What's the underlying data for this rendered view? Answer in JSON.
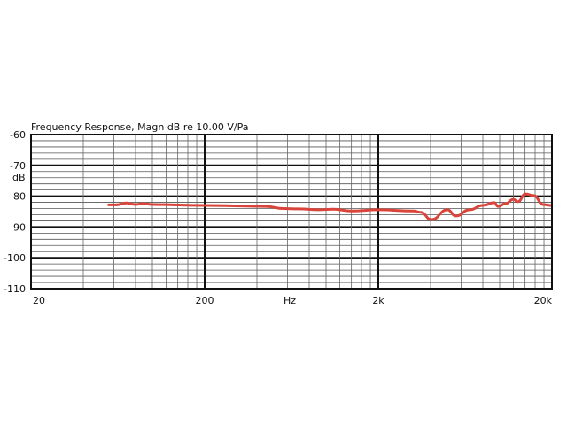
{
  "chart_data": {
    "type": "line",
    "title": "Frequency Response, Magn  dB re 10.00 V/Pa",
    "xlabel": "Hz",
    "ylabel": "dB",
    "x_scale": "log",
    "xlim": [
      20,
      20000
    ],
    "ylim": [
      -110,
      -60
    ],
    "x_ticks": [
      {
        "value": 20,
        "label": "20"
      },
      {
        "value": 200,
        "label": "200"
      },
      {
        "value": 2000,
        "label": "2k"
      },
      {
        "value": 20000,
        "label": "20k"
      }
    ],
    "y_ticks": [
      {
        "value": -60,
        "label": "-60"
      },
      {
        "value": -70,
        "label": "-70"
      },
      {
        "value": -80,
        "label": "-80"
      },
      {
        "value": -90,
        "label": "-90"
      },
      {
        "value": -100,
        "label": "-100"
      },
      {
        "value": -110,
        "label": "-110"
      }
    ],
    "grid": true,
    "series": [
      {
        "color": "#d9453b",
        "x": [
          56,
          62,
          71,
          80,
          89,
          100,
          200,
          450,
          569,
          700,
          909,
          1100,
          1400,
          2000,
          3200,
          3500,
          4050,
          5000,
          5600,
          6700,
          8000,
          9300,
          9800,
          10800,
          12000,
          12700,
          14100,
          15700,
          17800,
          19800
        ],
        "y": [
          -82.8,
          -82.8,
          -82.2,
          -82.7,
          -82.4,
          -82.7,
          -83.0,
          -83.3,
          -84.0,
          -84.1,
          -84.4,
          -84.2,
          -84.8,
          -84.4,
          -84.8,
          -85.2,
          -87.6,
          -84.4,
          -86.4,
          -84.4,
          -83.0,
          -82.1,
          -83.3,
          -82.4,
          -81.0,
          -81.8,
          -79.3,
          -79.8,
          -82.7,
          -83.0
        ]
      }
    ]
  }
}
